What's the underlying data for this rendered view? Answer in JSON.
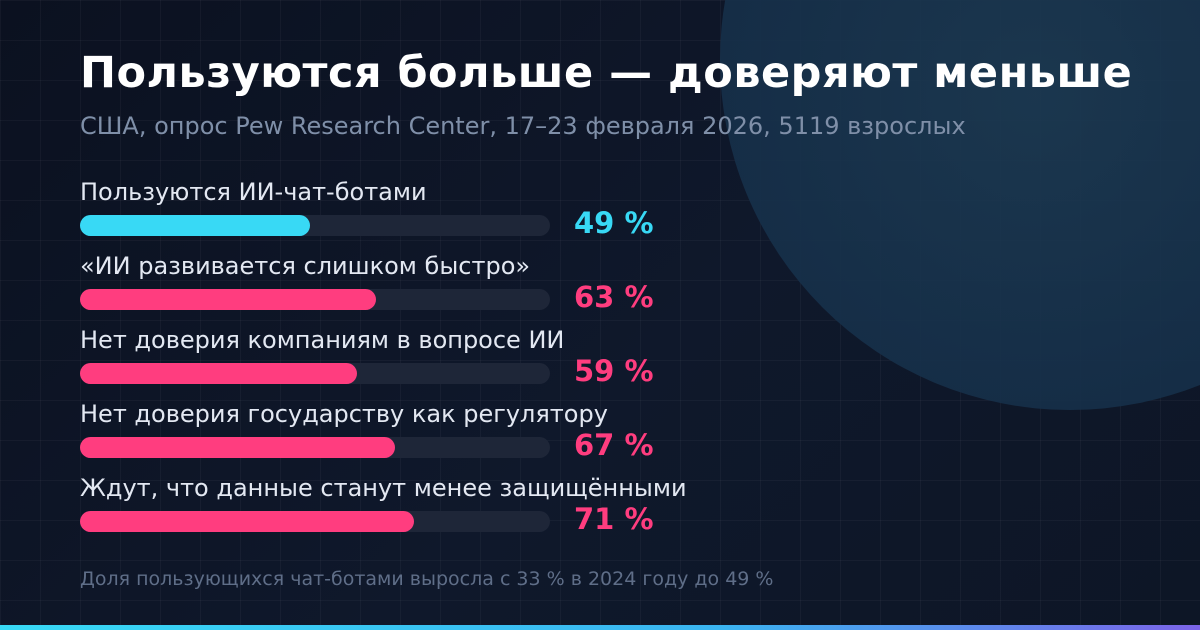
{
  "header": {
    "title": "Пользуются больше — доверяют меньше",
    "subtitle": "США, опрос Pew Research Center, 17–23 февраля 2026, 5119 взрослых"
  },
  "footnote": "Доля пользующихся чат-ботами выросла с 33 % в 2024 году до 49 %",
  "colors": {
    "usage": "#38d9f5",
    "concern": "#ff3d7f",
    "track": "#1e2638",
    "background": "#0d1424"
  },
  "chart_data": {
    "type": "bar",
    "orientation": "horizontal",
    "xlim": [
      0,
      100
    ],
    "unit": "%",
    "categories": [
      "Пользуются ИИ-чат-ботами",
      "«ИИ развивается слишком быстро»",
      "Нет доверия компаниям в вопросе ИИ",
      "Нет доверия государству как регулятору",
      "Ждут, что данные станут менее защищёнными"
    ],
    "values": [
      49,
      63,
      59,
      67,
      71
    ],
    "value_labels": [
      "49 %",
      "63 %",
      "59 %",
      "67 %",
      "71 %"
    ],
    "bar_colors": [
      "#38d9f5",
      "#ff3d7f",
      "#ff3d7f",
      "#ff3d7f",
      "#ff3d7f"
    ],
    "title": "Пользуются больше — доверяют меньше",
    "subtitle": "США, опрос Pew Research Center, 17–23 февраля 2026, 5119 взрослых",
    "grid": false,
    "legend": "none"
  }
}
